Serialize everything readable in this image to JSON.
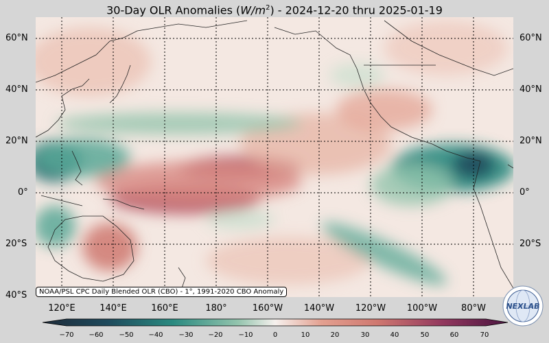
{
  "title": {
    "main": "30-Day OLR Anomalies (",
    "unit": "W/m",
    "unit_sup": "2",
    "rest": ") - 2024-12-20 thru 2025-01-19"
  },
  "credit": "NOAA/PSL CPC Daily Blended OLR (CBO) - 1°, 1991-2020 CBO Anomaly",
  "lat_labels": [
    "60°N",
    "40°N",
    "20°N",
    "0°",
    "20°S",
    "40°S"
  ],
  "lon_labels": [
    "120°E",
    "140°E",
    "160°E",
    "180°",
    "160°W",
    "140°W",
    "120°W",
    "100°W",
    "80°W"
  ],
  "colorbar": {
    "ticks": [
      "−70",
      "−60",
      "−50",
      "−40",
      "−30",
      "−20",
      "−10",
      "0",
      "10",
      "20",
      "30",
      "40",
      "50",
      "60",
      "70"
    ],
    "colors": [
      "#1d2b3a",
      "#1f4a5c",
      "#1c6b70",
      "#2a8a80",
      "#5aa896",
      "#93c4ad",
      "#c9dfce",
      "#f6f1ee",
      "#f0cbbd",
      "#e3a090",
      "#cf7870",
      "#b45466",
      "#92385e",
      "#6d2352",
      "#4a1440"
    ]
  },
  "logo": {
    "text": "NEXLAB",
    "icon": "nexlab-globe-logo"
  },
  "map": {
    "lat_range": [
      -40,
      67
    ],
    "lon_range": [
      105,
      290
    ],
    "dominant_anomaly_colors": {
      "positive": "#c06070",
      "negative": "#2a8a80",
      "neutral": "#f6f1ee"
    }
  }
}
